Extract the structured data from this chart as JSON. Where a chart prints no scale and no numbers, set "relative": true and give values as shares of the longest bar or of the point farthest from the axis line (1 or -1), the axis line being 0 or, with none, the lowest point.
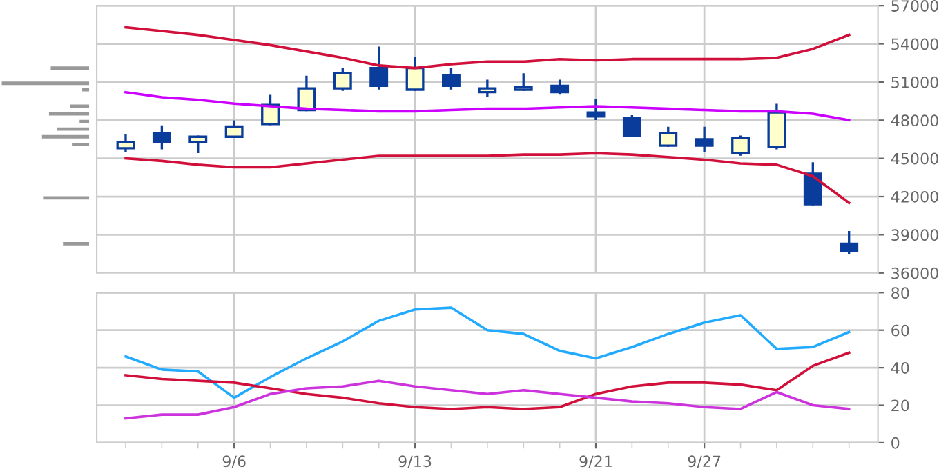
{
  "chart_data": [
    {
      "type": "bar",
      "orientation": "horizontal",
      "relative": true,
      "tick_labels": false,
      "color": "#999999",
      "x": [
        52100,
        50900,
        50400,
        49100,
        48500,
        47900,
        47300,
        46700,
        46100,
        41900,
        38300
      ],
      "values": [
        0.44,
        1,
        0.08,
        0.22,
        0.46,
        0.11,
        0.37,
        0.54,
        0.19,
        0.52,
        0.3
      ],
      "ylim": [
        36000,
        57000
      ]
    },
    {
      "type": "candlestick",
      "tick_labels": "y",
      "grid": true,
      "color": "#0a3c9c",
      "ohlc": [
        [
          45800,
          46800,
          45600,
          46300
        ],
        [
          47000,
          47500,
          45800,
          46300
        ],
        [
          46300,
          46700,
          45500,
          46700
        ],
        [
          46700,
          47900,
          46700,
          47500
        ],
        [
          47700,
          49900,
          47700,
          49200
        ],
        [
          48800,
          51400,
          48800,
          50500
        ],
        [
          50500,
          52000,
          50400,
          51700
        ],
        [
          52100,
          53700,
          50500,
          50700
        ],
        [
          50400,
          52900,
          50400,
          52100
        ],
        [
          51500,
          52000,
          50500,
          50700
        ],
        [
          50200,
          51100,
          49900,
          50500
        ],
        [
          50400,
          51600,
          50400,
          50600
        ],
        [
          50700,
          51100,
          50100,
          50200
        ],
        [
          48600,
          49600,
          48100,
          48300
        ],
        [
          48200,
          48300,
          46800,
          46800
        ],
        [
          46000,
          47400,
          46000,
          47000
        ],
        [
          46500,
          47400,
          45600,
          46000
        ],
        [
          45400,
          46700,
          45300,
          46600
        ],
        [
          45900,
          49200,
          45800,
          48600
        ],
        [
          43800,
          44600,
          41400,
          41400
        ],
        [
          38300,
          39200,
          37600,
          37700
        ]
      ],
      "colors": [
        "#ffffcc",
        "#0a3c9c",
        "#ffffcc",
        "#ffffcc",
        "#ffffcc",
        "#ffffcc",
        "#ffffcc",
        "#0a3c9c",
        "#ffffcc",
        "#0a3c9c",
        "#ffffcc",
        "#ffffcc",
        "#0a3c9c",
        "#0a3c9c",
        "#0a3c9c",
        "#ffffcc",
        "#0a3c9c",
        "#ffffcc",
        "#ffffcc",
        "#0a3c9c",
        "#0a3c9c"
      ],
      "series": [
        {
          "type": "line",
          "color": "#d0103a",
          "values": [
            55300,
            55000,
            54700,
            54300,
            53900,
            53400,
            52900,
            52300,
            52100,
            52400,
            52600,
            52600,
            52800,
            52700,
            52800,
            52800,
            52800,
            52800,
            52900,
            53600,
            54700
          ]
        },
        {
          "type": "line",
          "color": "#cc00ff",
          "values": [
            50200,
            49800,
            49600,
            49300,
            49100,
            48900,
            48800,
            48700,
            48700,
            48800,
            48900,
            48900,
            49000,
            49100,
            49000,
            48900,
            48800,
            48700,
            48700,
            48500,
            48000
          ]
        },
        {
          "type": "line",
          "color": "#d0103a",
          "values": [
            45000,
            44800,
            44500,
            44300,
            44300,
            44600,
            44900,
            45200,
            45200,
            45200,
            45200,
            45300,
            45300,
            45400,
            45300,
            45100,
            44900,
            44600,
            44500,
            43600,
            41500
          ]
        }
      ],
      "ylim": [
        36000,
        57000
      ],
      "yticks": [
        36000,
        39000,
        42000,
        45000,
        48000,
        51000,
        54000,
        57000
      ]
    },
    {
      "type": "line",
      "grid": true,
      "categories": [
        null,
        null,
        null,
        "9/6",
        null,
        null,
        null,
        null,
        "9/13",
        null,
        null,
        null,
        null,
        "9/21",
        null,
        null,
        "9/27",
        null,
        null,
        null,
        null
      ],
      "series": [
        {
          "color": "#22aaff",
          "values": [
            46,
            39,
            38,
            24,
            35,
            45,
            54,
            65,
            71,
            72,
            60,
            58,
            49,
            45,
            51,
            58,
            64,
            68,
            50,
            51,
            59
          ]
        },
        {
          "color": "#d0103a",
          "values": [
            36,
            34,
            33,
            32,
            29,
            26,
            24,
            21,
            19,
            18,
            19,
            18,
            19,
            26,
            30,
            32,
            32,
            31,
            28,
            41,
            48
          ]
        },
        {
          "color": "#cc33dd",
          "values": [
            13,
            15,
            15,
            19,
            26,
            29,
            30,
            33,
            30,
            28,
            26,
            28,
            26,
            24,
            22,
            21,
            19,
            18,
            27,
            20,
            18
          ]
        }
      ],
      "ylim": [
        0,
        80
      ],
      "yticks": [
        0,
        20,
        40,
        60,
        80
      ]
    }
  ]
}
